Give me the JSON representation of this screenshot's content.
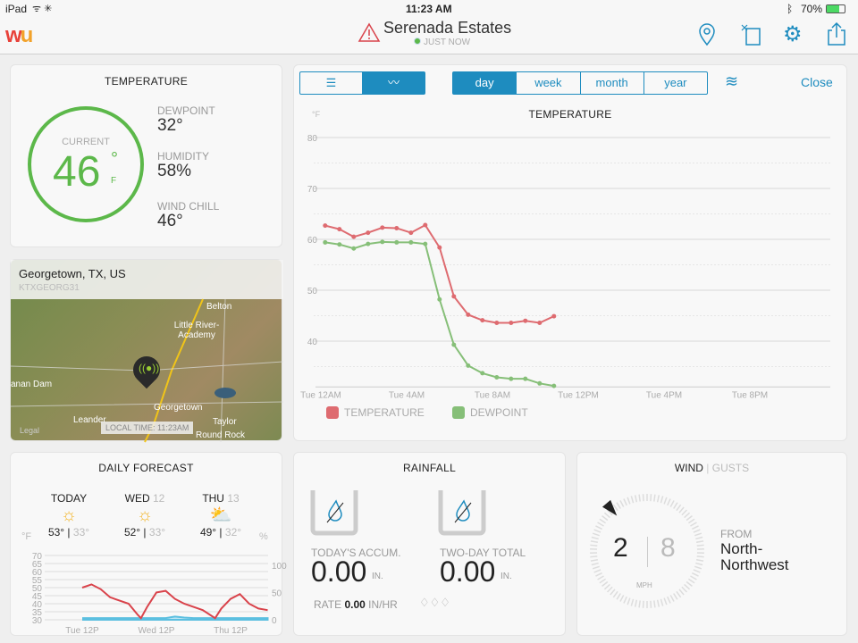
{
  "status": {
    "device": "iPad",
    "time": "11:23 AM",
    "battery": "70%"
  },
  "header": {
    "station": "Serenada Estates",
    "updated": "JUST NOW",
    "alert_color": "#d9434b",
    "accent": "#1e8cbf"
  },
  "temperature": {
    "title": "TEMPERATURE",
    "current_label": "CURRENT",
    "current": "46",
    "unit_deg": "°",
    "unit": "F",
    "dewpoint_label": "DEWPOINT",
    "dewpoint": "32°",
    "humidity_label": "HUMIDITY",
    "humidity": "58%",
    "windchill_label": "WIND CHILL",
    "windchill": "46°",
    "ring_color": "#5cb84a"
  },
  "map": {
    "location": "Georgetown, TX, US",
    "station_id": "KTXGEORG31",
    "local_time": "LOCAL TIME: 11:23AM",
    "places": [
      "Belton",
      "Little River-Academy",
      "Georgetown",
      "Leander",
      "Taylor",
      "anan Dam",
      "Round Rock",
      "Legal"
    ]
  },
  "toolbar": {
    "ranges": [
      "day",
      "week",
      "month",
      "year"
    ],
    "active_range": "day",
    "close": "Close"
  },
  "chart_data": {
    "type": "line",
    "title": "TEMPERATURE",
    "ylabel": "°F",
    "ylim": [
      31,
      82
    ],
    "yticks": [
      40,
      50,
      60,
      70,
      80
    ],
    "grid": true,
    "legend": "bottom-left",
    "xticks": [
      "Tue 12AM",
      "Tue 4AM",
      "Tue 8AM",
      "Tue 12PM",
      "Tue 4PM",
      "Tue 8PM"
    ],
    "x": [
      "12:12AM",
      "12:52AM",
      "1:32AM",
      "2:12AM",
      "2:52AM",
      "3:32AM",
      "4:12AM",
      "4:52AM",
      "5:32AM",
      "6:12AM",
      "6:52AM",
      "7:32AM",
      "8:12AM",
      "8:52AM",
      "9:32AM",
      "10:12AM",
      "10:52AM"
    ],
    "series": [
      {
        "name": "TEMPERATURE",
        "color": "#de6b70",
        "values": [
          62.7,
          62.0,
          60.5,
          61.3,
          62.3,
          62.2,
          61.3,
          62.8,
          58.4,
          48.8,
          45.2,
          44.1,
          43.6,
          43.6,
          44.0,
          43.6,
          44.9
        ]
      },
      {
        "name": "DEWPOINT",
        "color": "#86bf78",
        "values": [
          59.4,
          59.0,
          58.2,
          59.1,
          59.5,
          59.4,
          59.4,
          59.1,
          48.2,
          39.3,
          35.2,
          33.7,
          32.9,
          32.6,
          32.6,
          31.7,
          31.2
        ]
      }
    ]
  },
  "forecast": {
    "title": "DAILY FORECAST",
    "unit_left": "°F",
    "unit_right": "%",
    "days": [
      {
        "name": "TODAY",
        "date": "",
        "icon": "sun",
        "high": "53°",
        "low": "33°"
      },
      {
        "name": "WED",
        "date": "12",
        "icon": "sun",
        "high": "52°",
        "low": "33°"
      },
      {
        "name": "THU",
        "date": "13",
        "icon": "partly-cloudy",
        "high": "49°",
        "low": "32°"
      }
    ],
    "chart": {
      "type": "line",
      "ylim": [
        30,
        70
      ],
      "yticks": [
        30,
        35,
        40,
        45,
        50,
        55,
        60,
        65,
        70
      ],
      "y2lim": [
        0,
        100
      ],
      "y2ticks": [
        0,
        50,
        100
      ],
      "xticks": [
        "Tue 12P",
        "Wed 12P",
        "Thu 12P"
      ],
      "x": [
        "Tue 12P",
        "Tue 3P",
        "Tue 6P",
        "Tue 9P",
        "Wed 12A",
        "Wed 3A",
        "Wed 6A",
        "Wed 7A",
        "Wed 9A",
        "Wed 12P",
        "Wed 3P",
        "Wed 6P",
        "Wed 9P",
        "Thu 12A",
        "Thu 3A",
        "Thu 7A",
        "Thu 9A",
        "Thu 12P",
        "Thu 3P",
        "Thu 6P",
        "Thu 9P",
        "Fri 12A"
      ],
      "temp": [
        50,
        52,
        49,
        44,
        42,
        40,
        33,
        31,
        38,
        47,
        48,
        43,
        40,
        38,
        36,
        31,
        37,
        43,
        46,
        40,
        37,
        36
      ],
      "precip": [
        3,
        3,
        3,
        3,
        3,
        3,
        3,
        3,
        3,
        3,
        3,
        6,
        4,
        3,
        3,
        3,
        3,
        3,
        3,
        3,
        3,
        3
      ],
      "temp_color": "#d9434b",
      "precip_color": "#5bbfe0"
    }
  },
  "rainfall": {
    "title": "RAINFALL",
    "today_label": "TODAY'S ACCUM.",
    "today": "0.00",
    "twoday_label": "TWO-DAY TOTAL",
    "twoday": "0.00",
    "unit": "IN.",
    "rate_label": "RATE",
    "rate": "0.00",
    "rate_unit": "IN/HR"
  },
  "wind": {
    "title": "WIND",
    "gusts_label": "GUSTS",
    "speed": "2",
    "gust": "8",
    "unit": "MPH",
    "from_label": "FROM",
    "direction": "North-\nNorthwest",
    "direction_deg": 337.5
  }
}
